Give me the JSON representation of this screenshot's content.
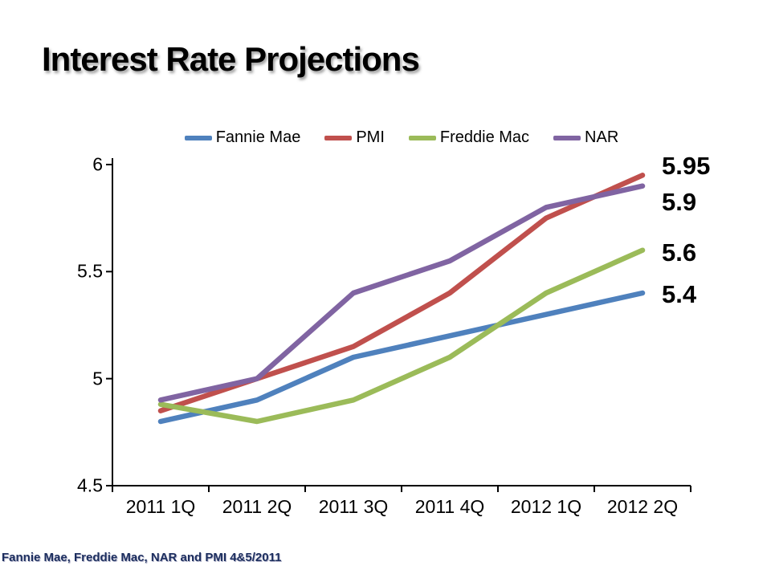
{
  "title": "Interest Rate Projections",
  "footer": "Fannie Mae, Freddie Mac, NAR and PMI 4&5/2011",
  "chart_data": {
    "type": "line",
    "title": "Interest Rate Projections",
    "categories": [
      "2011 1Q",
      "2011 2Q",
      "2011 3Q",
      "2011 4Q",
      "2012 1Q",
      "2012 2Q"
    ],
    "series": [
      {
        "name": "Fannie Mae",
        "color": "#4F81BD",
        "values": [
          4.8,
          4.9,
          5.1,
          5.2,
          5.3,
          5.4
        ]
      },
      {
        "name": "PMI",
        "color": "#C0504D",
        "values": [
          4.85,
          5.0,
          5.15,
          5.4,
          5.75,
          5.95
        ]
      },
      {
        "name": "Freddie Mac",
        "color": "#9BBB59",
        "values": [
          4.88,
          4.8,
          4.9,
          5.1,
          5.4,
          5.6
        ]
      },
      {
        "name": "NAR",
        "color": "#8064A2",
        "values": [
          4.9,
          5.0,
          5.4,
          5.55,
          5.8,
          5.9
        ]
      }
    ],
    "end_labels": [
      "5.95",
      "5.9",
      "5.6",
      "5.4"
    ],
    "ylim": [
      4.5,
      6
    ],
    "yticks": [
      "6",
      "5.5",
      "5",
      "4.5"
    ],
    "xlabel": "",
    "ylabel": "",
    "grid": false,
    "legend_position": "top",
    "axis_color": "#000000"
  }
}
